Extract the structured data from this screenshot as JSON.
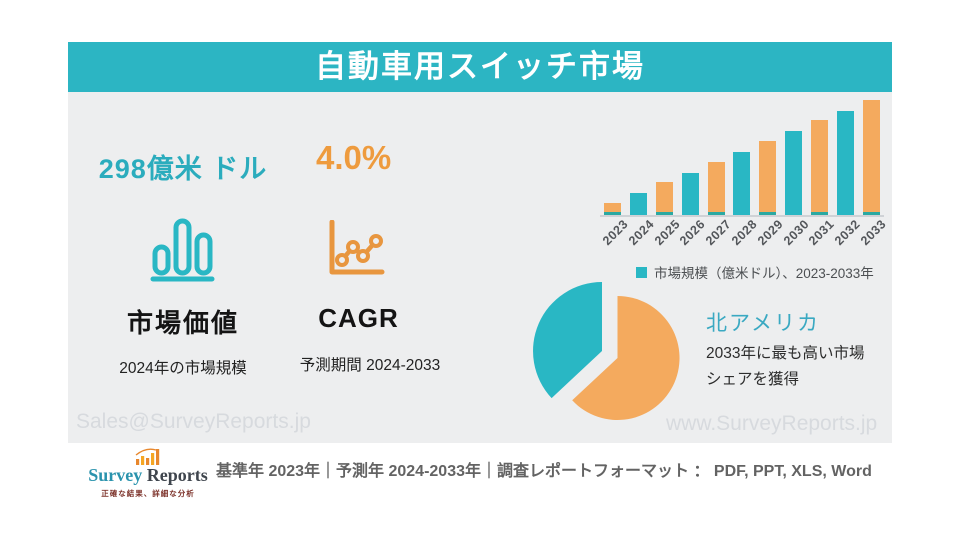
{
  "header": {
    "title": "自動車用スイッチ市場"
  },
  "stats": {
    "market_value": {
      "value": "298億米 ドル",
      "label": "市場価値",
      "sublabel": "2024年の市場規模",
      "icon": "bar-chart-icon",
      "value_color": "#2bacbd"
    },
    "cagr": {
      "value": "4.0%",
      "label": "CAGR",
      "sublabel": "予測期間 2024-2033",
      "icon": "line-chart-icon",
      "value_color": "#ee9b3e"
    }
  },
  "chart_data": [
    {
      "type": "bar",
      "title": "",
      "categories": [
        "2023",
        "2024",
        "2025",
        "2026",
        "2027",
        "2028",
        "2029",
        "2030",
        "2031",
        "2032",
        "2033"
      ],
      "values": [
        12,
        22,
        33,
        42,
        53,
        63,
        74,
        84,
        95,
        104,
        115
      ],
      "values_note": "stylized relative bar heights (px) — no numeric value axis is shown in the image",
      "legend": [
        "市場規模（億米ドル）、2023-2033年"
      ],
      "legend_position": "bottom",
      "grid": false,
      "xlabel": "",
      "ylabel": "",
      "colors": {
        "odd_bars": "#f4aa5e",
        "even_bars": "#29b7c4",
        "base_strip": "#2aa9a2",
        "axis_line": "#cfd2d6"
      }
    },
    {
      "type": "pie",
      "slices": [
        {
          "label": "北アメリカ",
          "value_pct": 37,
          "color": "#29b7c4",
          "exploded": true
        },
        {
          "label": "",
          "value_pct": 63,
          "color": "#f4aa5e",
          "exploded": false
        }
      ],
      "note": "percentages estimated from arc angles; teal exploded slice is referenced by the 北アメリカ callout"
    }
  ],
  "region": {
    "name": "北アメリカ",
    "description": "2033年に最も高い市場シェアを獲得",
    "description_lines": [
      "2033年に最も高い市場",
      "シェアを獲得"
    ]
  },
  "watermarks": {
    "left": "Sales@SurveyReports.jp",
    "right": "www.SurveyReports.jp"
  },
  "footer": {
    "logo": {
      "icon": "logo-bars-icon",
      "name_primary": "Survey",
      "name_secondary": "Reports",
      "tagline": "正確な結果、詳細な分析"
    },
    "info": "基準年 2023年｜予測年 2024-2033年｜調査レポートフォーマット ： PDF, PPT, XLS, Word"
  },
  "colors": {
    "header_bg": "#2cb5c3",
    "card_bg": "#edeeef",
    "teal": "#29b7c4",
    "orange": "#f4aa5e",
    "orange_dark": "#ee9b3e",
    "watermark": "#d7dade",
    "footer_text": "#636363"
  }
}
